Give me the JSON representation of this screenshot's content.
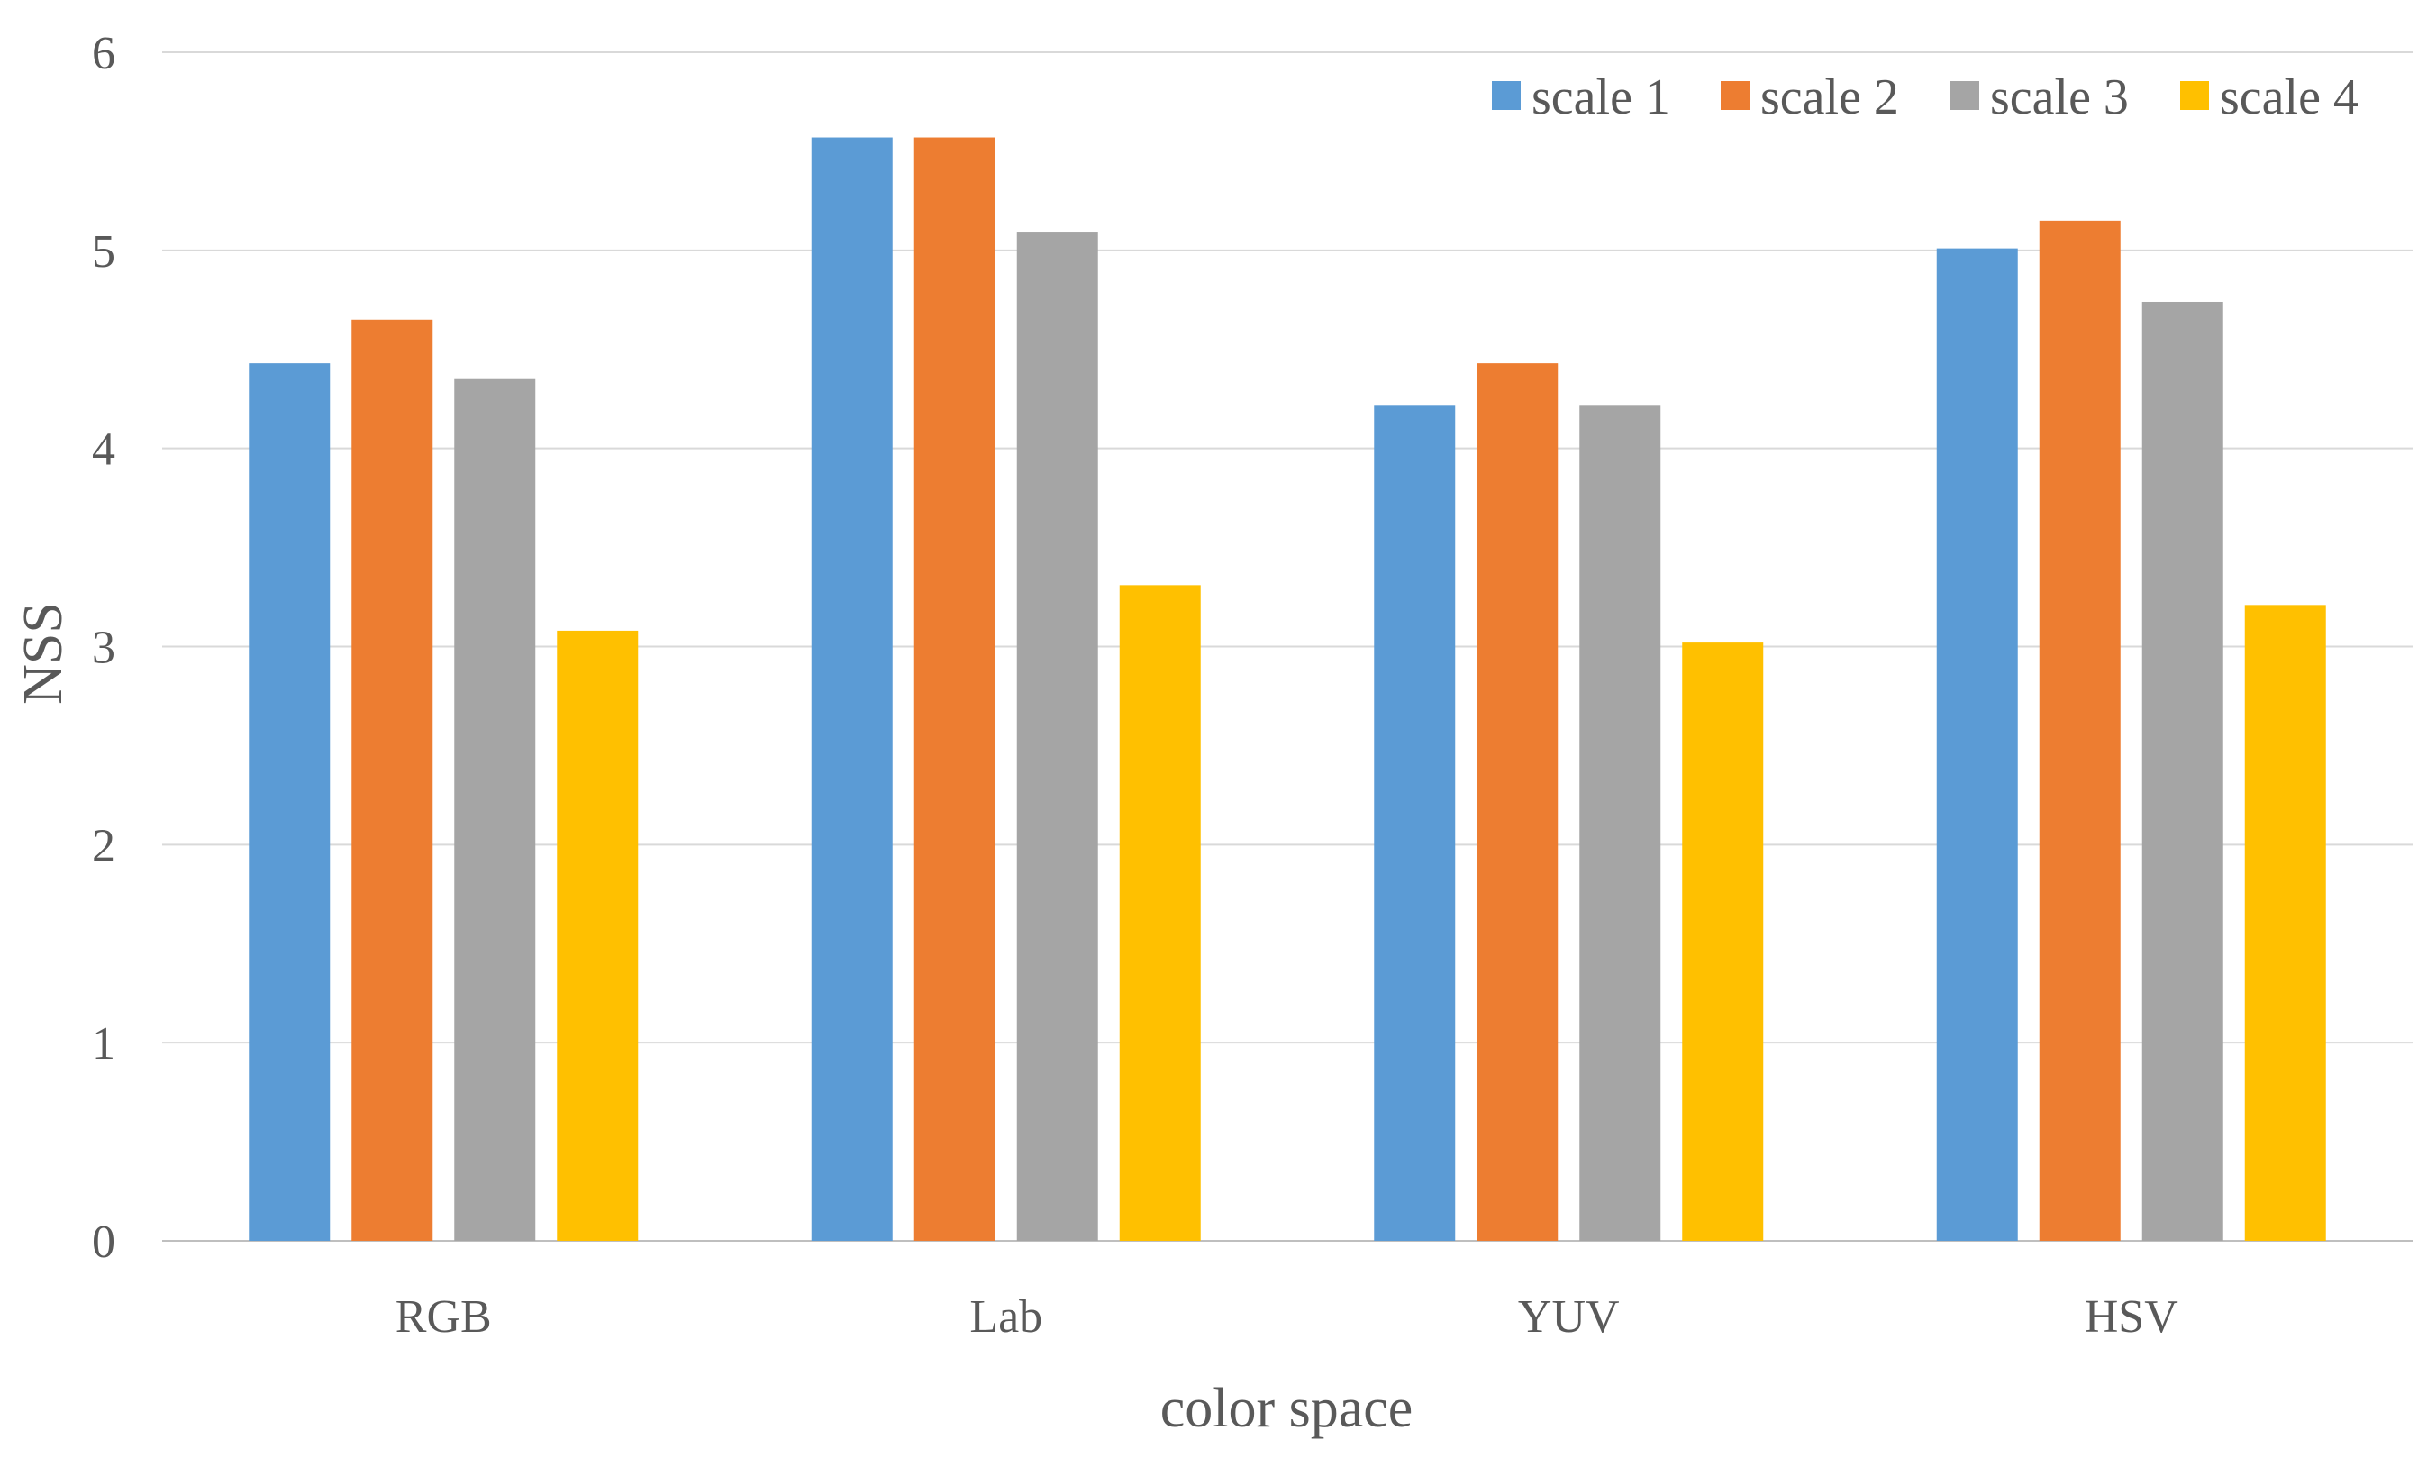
{
  "chart_data": {
    "type": "bar",
    "title": "",
    "xlabel": "color space",
    "ylabel": "NSS",
    "categories": [
      "RGB",
      "Lab",
      "YUV",
      "HSV"
    ],
    "ylim": [
      0,
      6
    ],
    "yticks": [
      0,
      1,
      2,
      3,
      4,
      5,
      6
    ],
    "grid": true,
    "legend_position": "top-right",
    "series": [
      {
        "name": "scale 1",
        "color": "#5B9BD5",
        "values": [
          4.43,
          5.57,
          4.22,
          5.01
        ]
      },
      {
        "name": "scale 2",
        "color": "#ED7D31",
        "values": [
          4.65,
          5.57,
          4.43,
          5.15
        ]
      },
      {
        "name": "scale 3",
        "color": "#A5A5A5",
        "values": [
          4.35,
          5.09,
          4.22,
          4.74
        ]
      },
      {
        "name": "scale 4",
        "color": "#FFC000",
        "values": [
          3.08,
          3.31,
          3.02,
          3.21
        ]
      }
    ]
  }
}
